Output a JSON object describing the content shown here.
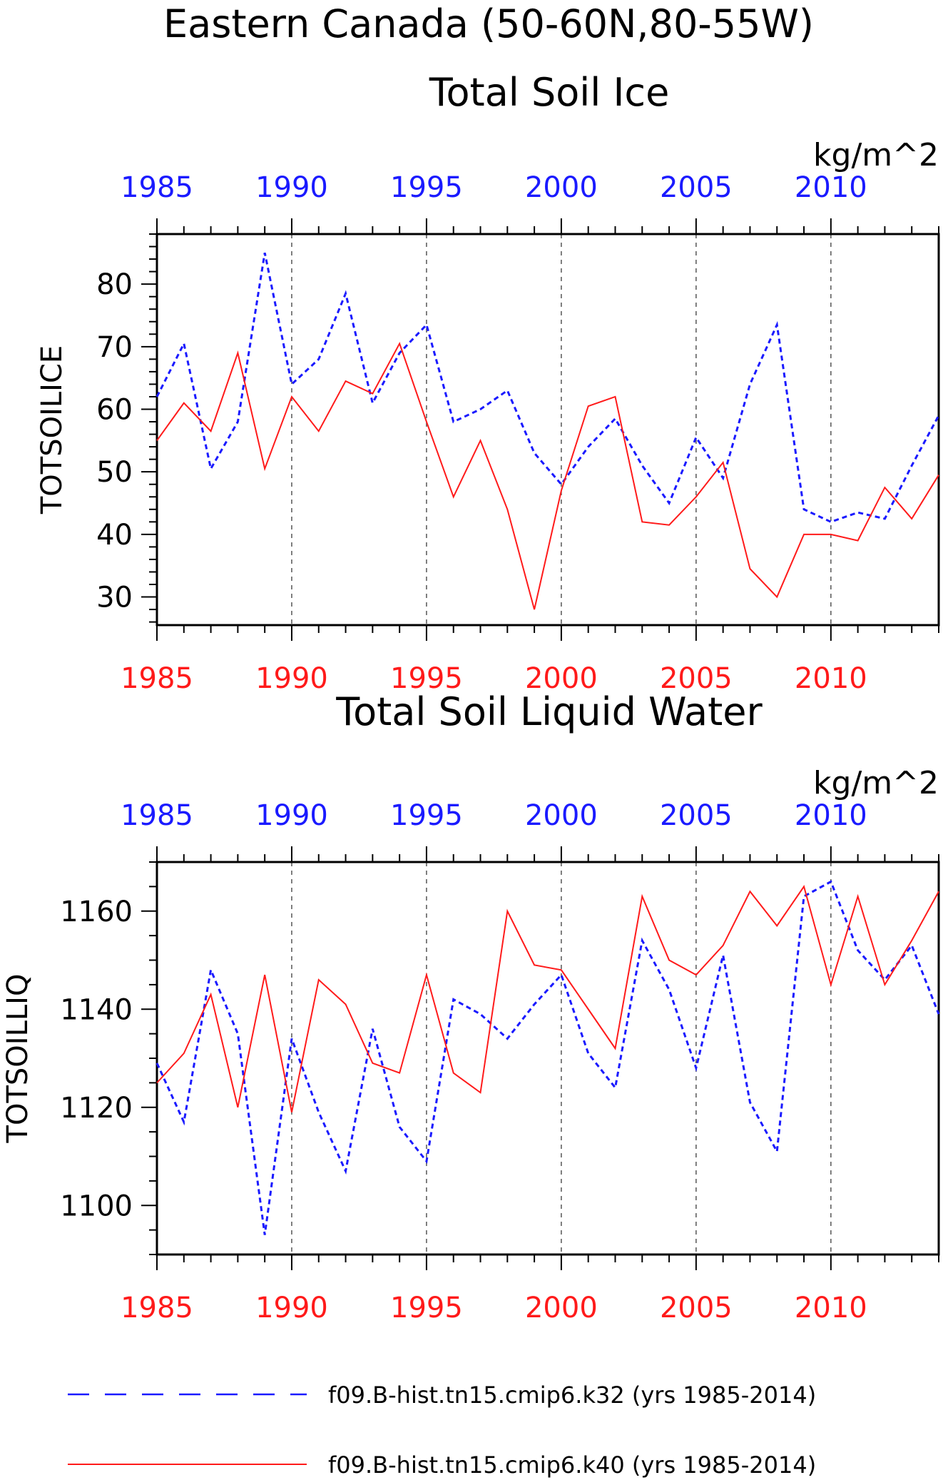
{
  "figure": {
    "title_line1": "Eastern Canada (50-60N,80-55W)",
    "colors": {
      "blue": "#1a1aff",
      "red": "#ff1a1a",
      "axis": "#000000",
      "grid": "#555555"
    }
  },
  "legend": [
    {
      "label": "f09.B-hist.tn15.cmip6.k32 (yrs 1985-2014)",
      "color": "#1a1aff",
      "dash": "dashed"
    },
    {
      "label": "f09.B-hist.tn15.cmip6.k40 (yrs 1985-2014)",
      "color": "#ff1a1a",
      "dash": "solid"
    }
  ],
  "chart_data": [
    {
      "type": "line",
      "title": "Total Soil Ice",
      "units": "kg/m^2",
      "ylabel": "TOTSOILICE",
      "xlim": [
        1985,
        2014
      ],
      "ylim": [
        25.5,
        88
      ],
      "yticks": [
        30,
        40,
        50,
        60,
        70,
        80
      ],
      "xticks": [
        1985,
        1990,
        1995,
        2000,
        2005,
        2010
      ],
      "grid": "vertical dashed at 1990,1995,2000,2005,2010",
      "x": [
        1985,
        1986,
        1987,
        1988,
        1989,
        1990,
        1991,
        1992,
        1993,
        1994,
        1995,
        1996,
        1997,
        1998,
        1999,
        2000,
        2001,
        2002,
        2003,
        2004,
        2005,
        2006,
        2007,
        2008,
        2009,
        2010,
        2011,
        2012,
        2013,
        2014
      ],
      "series": [
        {
          "name": "f09.B-hist.tn15.cmip6.k32",
          "color": "#1a1aff",
          "dash": "dashed",
          "values": [
            62,
            70.5,
            50.5,
            58,
            85,
            64,
            68,
            78.5,
            61,
            69,
            73.5,
            58,
            60,
            63,
            53,
            48,
            54,
            58.5,
            51,
            45,
            55.5,
            49,
            64,
            73.5,
            44,
            42,
            43.5,
            42.5,
            51,
            59
          ]
        },
        {
          "name": "f09.B-hist.tn15.cmip6.k40",
          "color": "#ff1a1a",
          "dash": "solid",
          "values": [
            55,
            61,
            56.5,
            69,
            50.5,
            62,
            56.5,
            64.5,
            62.5,
            70.5,
            58,
            46,
            55,
            44,
            28,
            47,
            60.5,
            62,
            42,
            41.5,
            46,
            51.5,
            34.5,
            30,
            40,
            40,
            39,
            47.5,
            42.5,
            49.5
          ]
        }
      ]
    },
    {
      "type": "line",
      "title": "Total Soil Liquid Water",
      "units": "kg/m^2",
      "ylabel": "TOTSOILLIQ",
      "xlim": [
        1985,
        2014
      ],
      "ylim": [
        1090,
        1170
      ],
      "yticks": [
        1100,
        1120,
        1140,
        1160
      ],
      "xticks": [
        1985,
        1990,
        1995,
        2000,
        2005,
        2010
      ],
      "grid": "vertical dashed at 1990,1995,2000,2005,2010",
      "x": [
        1985,
        1986,
        1987,
        1988,
        1989,
        1990,
        1991,
        1992,
        1993,
        1994,
        1995,
        1996,
        1997,
        1998,
        1999,
        2000,
        2001,
        2002,
        2003,
        2004,
        2005,
        2006,
        2007,
        2008,
        2009,
        2010,
        2011,
        2012,
        2013,
        2014
      ],
      "series": [
        {
          "name": "f09.B-hist.tn15.cmip6.k32",
          "color": "#1a1aff",
          "dash": "dashed",
          "values": [
            1129,
            1117,
            1148,
            1135,
            1094,
            1134,
            1119,
            1107,
            1136,
            1116,
            1109,
            1142,
            1139,
            1134,
            1141,
            1147,
            1131,
            1124,
            1154,
            1144,
            1128,
            1151,
            1121,
            1111,
            1163,
            1166,
            1152,
            1146,
            1153,
            1139
          ]
        },
        {
          "name": "f09.B-hist.tn15.cmip6.k40",
          "color": "#ff1a1a",
          "dash": "solid",
          "values": [
            1125,
            1131,
            1143,
            1120,
            1147,
            1119,
            1146,
            1141,
            1129,
            1127,
            1147,
            1127,
            1123,
            1160,
            1149,
            1148,
            1140,
            1132,
            1163,
            1150,
            1147,
            1153,
            1164,
            1157,
            1165,
            1145,
            1163,
            1145,
            1154,
            1164
          ]
        }
      ]
    }
  ]
}
